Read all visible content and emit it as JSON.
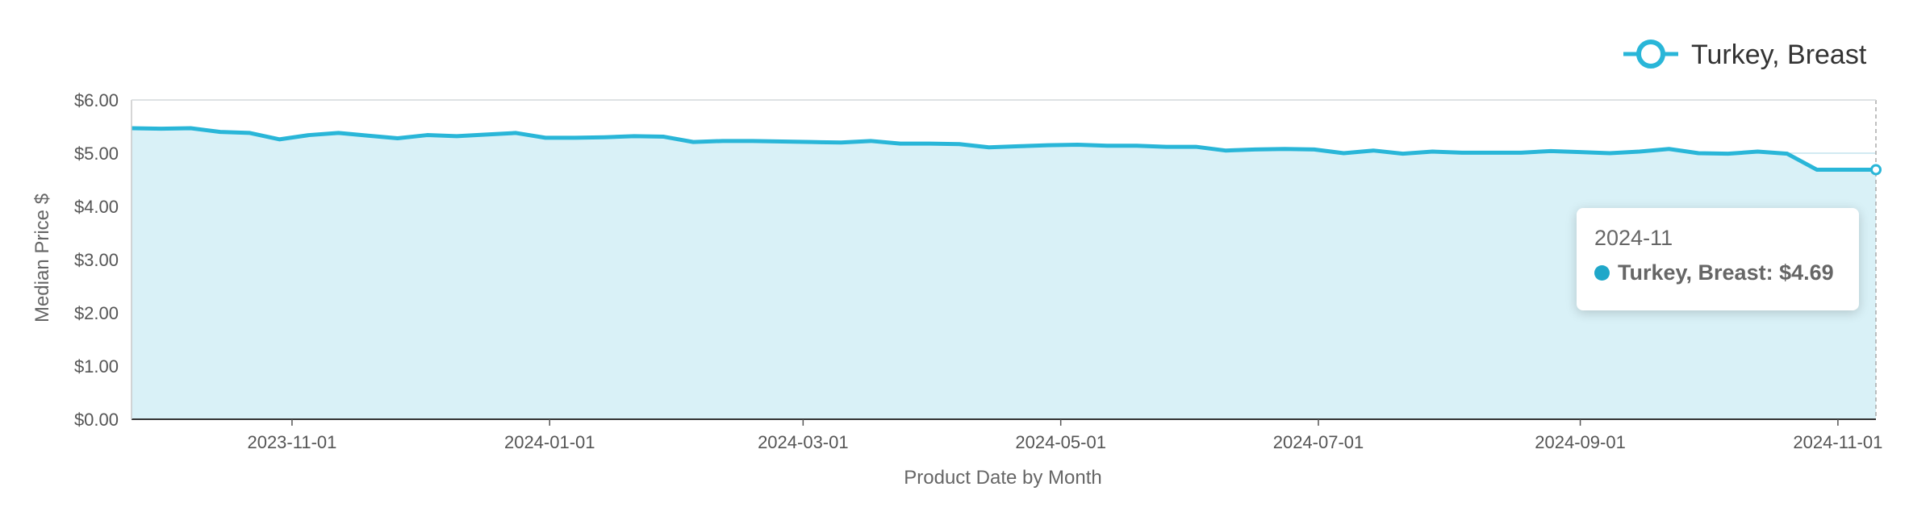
{
  "colors": {
    "series": "#29b6d8",
    "fill": "#d9f1f7",
    "grid": "#c4e4ee",
    "tooltip_dot": "#1fa7c9"
  },
  "chart_data": {
    "type": "area",
    "xlabel": "Product Date by Month",
    "ylabel": "Median Price $",
    "ylim": [
      0,
      6
    ],
    "y_ticks": [
      "$0.00",
      "$1.00",
      "$2.00",
      "$3.00",
      "$4.00",
      "$5.00",
      "$6.00"
    ],
    "x_ticks": [
      "2023-11-01",
      "2024-01-01",
      "2024-03-01",
      "2024-05-01",
      "2024-07-01",
      "2024-09-01",
      "2024-11-01"
    ],
    "legend": {
      "position": "top-right",
      "label": "Turkey, Breast"
    },
    "grid": true,
    "series": [
      {
        "name": "Turkey, Breast",
        "x": [
          "2023-09-24",
          "2023-10-01",
          "2023-10-08",
          "2023-10-15",
          "2023-10-22",
          "2023-10-29",
          "2023-11-05",
          "2023-11-12",
          "2023-11-19",
          "2023-11-26",
          "2023-12-03",
          "2023-12-10",
          "2023-12-17",
          "2023-12-24",
          "2023-12-31",
          "2024-01-07",
          "2024-01-14",
          "2024-01-21",
          "2024-01-28",
          "2024-02-04",
          "2024-02-11",
          "2024-02-18",
          "2024-02-25",
          "2024-03-03",
          "2024-03-10",
          "2024-03-17",
          "2024-03-24",
          "2024-03-31",
          "2024-04-07",
          "2024-04-14",
          "2024-04-21",
          "2024-04-28",
          "2024-05-05",
          "2024-05-12",
          "2024-05-19",
          "2024-05-26",
          "2024-06-02",
          "2024-06-09",
          "2024-06-16",
          "2024-06-23",
          "2024-06-30",
          "2024-07-07",
          "2024-07-14",
          "2024-07-21",
          "2024-07-28",
          "2024-08-04",
          "2024-08-11",
          "2024-08-18",
          "2024-08-25",
          "2024-09-01",
          "2024-09-08",
          "2024-09-15",
          "2024-09-22",
          "2024-09-29",
          "2024-10-06",
          "2024-10-13",
          "2024-10-20",
          "2024-10-27",
          "2024-11-03",
          "2024-11-10"
        ],
        "values": [
          5.47,
          5.46,
          5.47,
          5.4,
          5.38,
          5.26,
          5.34,
          5.38,
          5.33,
          5.28,
          5.34,
          5.32,
          5.35,
          5.38,
          5.29,
          5.29,
          5.3,
          5.32,
          5.31,
          5.21,
          5.23,
          5.23,
          5.22,
          5.21,
          5.2,
          5.23,
          5.18,
          5.18,
          5.17,
          5.11,
          5.13,
          5.15,
          5.16,
          5.14,
          5.14,
          5.12,
          5.12,
          5.05,
          5.07,
          5.08,
          5.07,
          5.0,
          5.05,
          4.99,
          5.03,
          5.01,
          5.01,
          5.01,
          5.04,
          5.02,
          5.0,
          5.03,
          5.08,
          5.0,
          4.99,
          5.03,
          4.99,
          4.69,
          4.69,
          4.69
        ]
      }
    ],
    "tooltip": {
      "title": "2024-11",
      "label": "Turkey, Breast: $4.69"
    }
  }
}
